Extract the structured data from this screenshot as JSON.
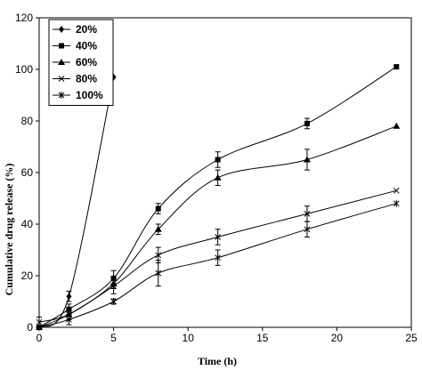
{
  "chart_data": {
    "type": "line",
    "xlabel": "Time (h)",
    "ylabel": "Cumulative drug release (%)",
    "xlim": [
      0,
      25
    ],
    "ylim": [
      0,
      120
    ],
    "xticks": [
      0,
      5,
      10,
      15,
      20,
      25
    ],
    "yticks": [
      0,
      20,
      40,
      60,
      80,
      100,
      120
    ],
    "grid": false,
    "legend_position": "top-left",
    "series": [
      {
        "name": "20%",
        "marker": "diamond",
        "x": [
          0,
          2,
          5
        ],
        "y": [
          0,
          12,
          97
        ],
        "err": [
          0,
          2,
          0
        ]
      },
      {
        "name": "40%",
        "marker": "square",
        "x": [
          0,
          2,
          5,
          8,
          12,
          18,
          24
        ],
        "y": [
          0,
          7,
          19,
          46,
          65,
          79,
          101
        ],
        "err": [
          0,
          2,
          3,
          2,
          3,
          2,
          0
        ]
      },
      {
        "name": "60%",
        "marker": "triangle",
        "x": [
          0,
          2,
          5,
          8,
          12,
          18,
          24
        ],
        "y": [
          0,
          5,
          17,
          38,
          58,
          65,
          78
        ],
        "err": [
          0,
          2,
          2,
          2,
          3,
          4,
          0
        ]
      },
      {
        "name": "80%",
        "marker": "x",
        "x": [
          0,
          2,
          5,
          8,
          12,
          18,
          24
        ],
        "y": [
          2,
          5,
          16,
          28,
          35,
          44,
          53
        ],
        "err": [
          2,
          2,
          3,
          3,
          3,
          3,
          0
        ]
      },
      {
        "name": "100%",
        "marker": "star",
        "x": [
          0,
          2,
          5,
          8,
          12,
          18,
          24
        ],
        "y": [
          0,
          3,
          10,
          21,
          27,
          38,
          48
        ],
        "err": [
          0,
          2,
          1,
          5,
          3,
          3,
          0
        ]
      }
    ]
  }
}
